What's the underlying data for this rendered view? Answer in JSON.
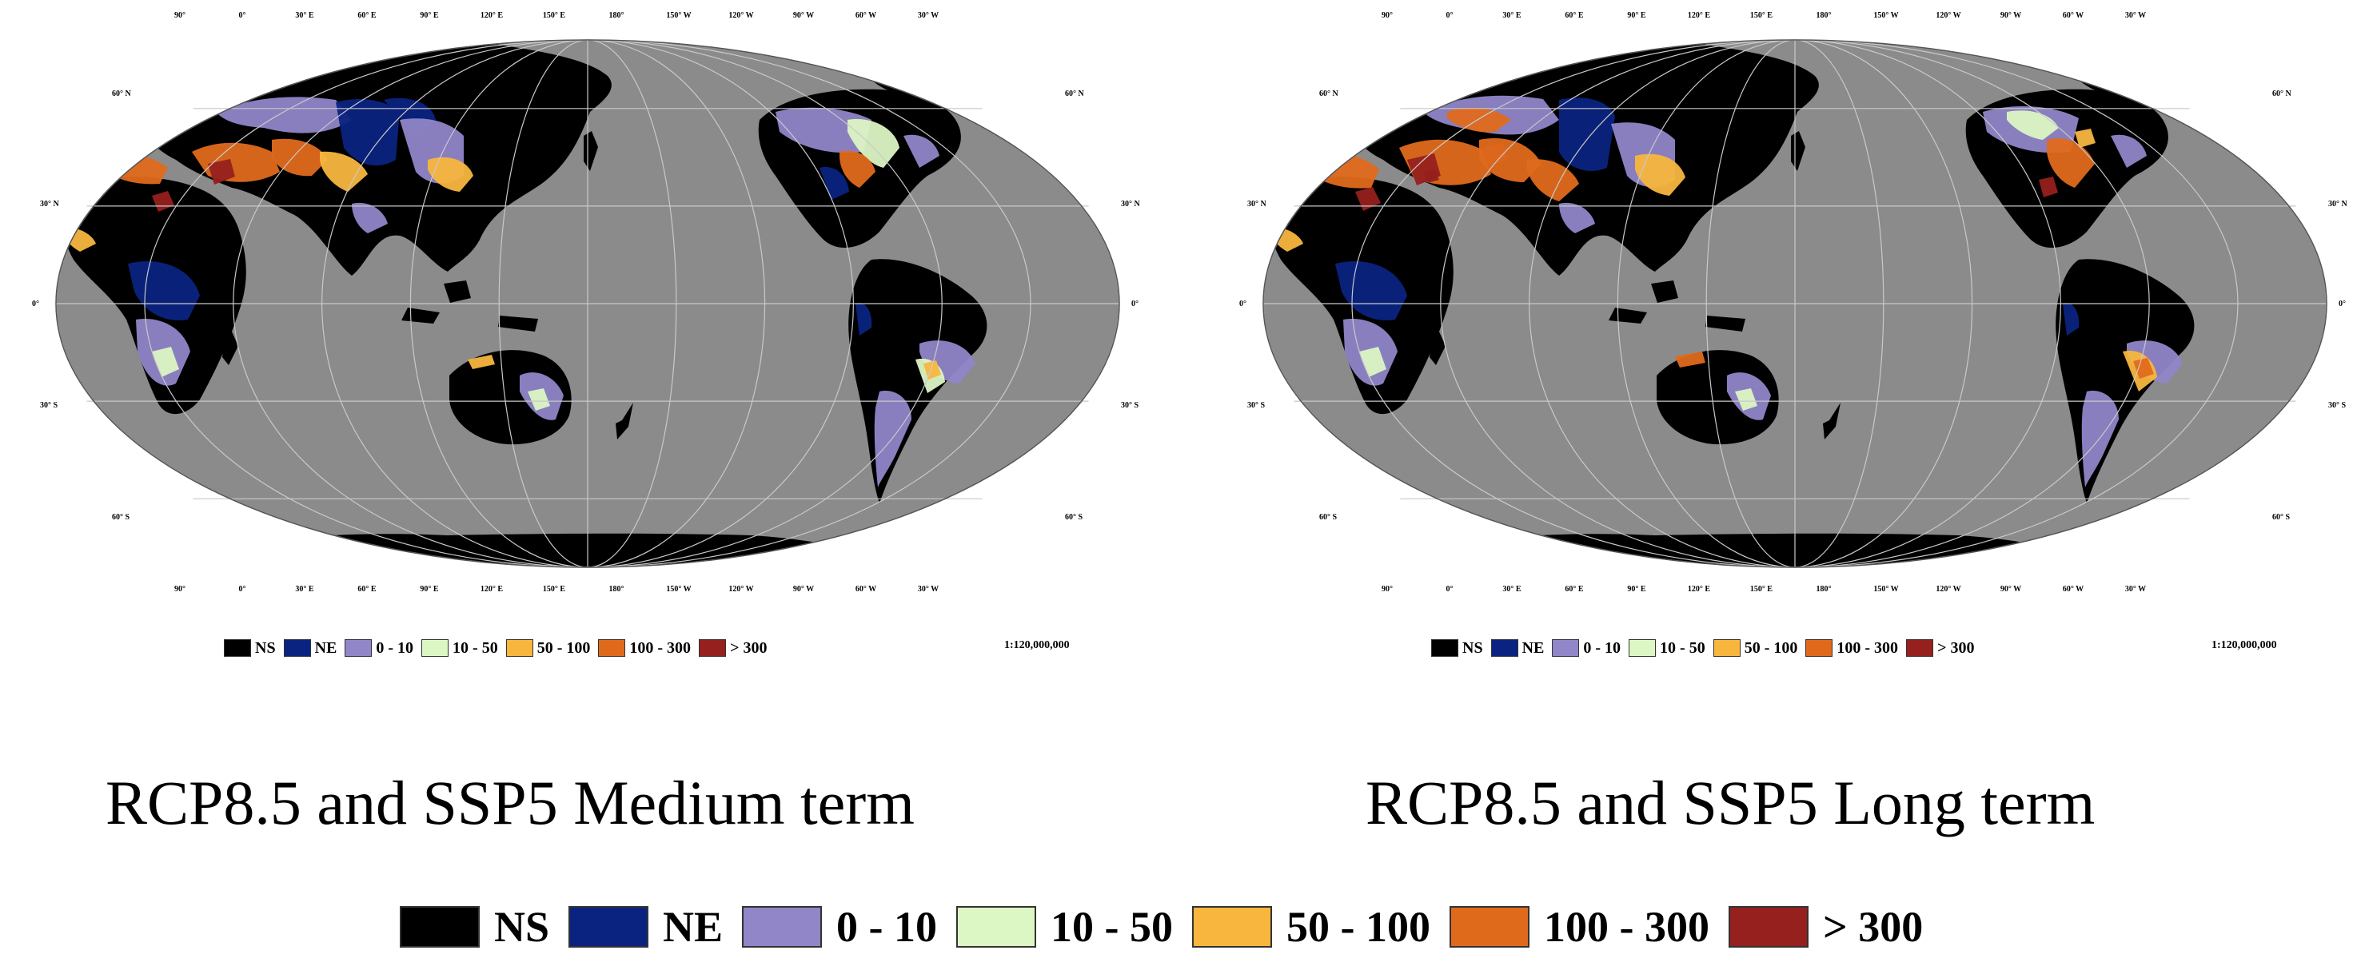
{
  "maps": [
    {
      "id": "medium",
      "caption": "RCP8.5 and SSP5 Medium term",
      "scale": "1:120,000,000",
      "heat": "medium"
    },
    {
      "id": "long",
      "caption": "RCP8.5 and SSP5 Long term",
      "scale": "1:120,000,000",
      "heat": "long"
    }
  ],
  "graticule": {
    "top_lon_labels": [
      "90°",
      "0°",
      "30° E",
      "60° E",
      "90° E",
      "120° E",
      "150° E",
      "180°",
      "150° W",
      "120° W",
      "90° W",
      "60° W",
      "30° W"
    ],
    "bottom_lon_labels": [
      "90°",
      "0°",
      "30° E",
      "60° E",
      "90° E",
      "120° E",
      "150° E",
      "180°",
      "150° W",
      "120° W",
      "90° W",
      "60° W",
      "30° W"
    ],
    "lat_labels_left": [
      "60° N",
      "30° N",
      "0°",
      "30° S",
      "60° S"
    ],
    "lat_labels_right": [
      "60° N",
      "30° N",
      "0°",
      "30° S",
      "60° S"
    ]
  },
  "legend": [
    {
      "label": "NS",
      "color": "#000000"
    },
    {
      "label": "NE",
      "color": "#0b2380"
    },
    {
      "label": "0 - 10",
      "color": "#9086c8"
    },
    {
      "label": "10 - 50",
      "color": "#dcf6c4"
    },
    {
      "label": "50 - 100",
      "color": "#f8b63e"
    },
    {
      "label": "100 - 300",
      "color": "#e06a1c"
    },
    {
      "label": "> 300",
      "color": "#96201e"
    }
  ],
  "colors": {
    "ocean": "#8b8b8b",
    "land_nodata": "#000000",
    "graticule": "#c9c9c9"
  }
}
